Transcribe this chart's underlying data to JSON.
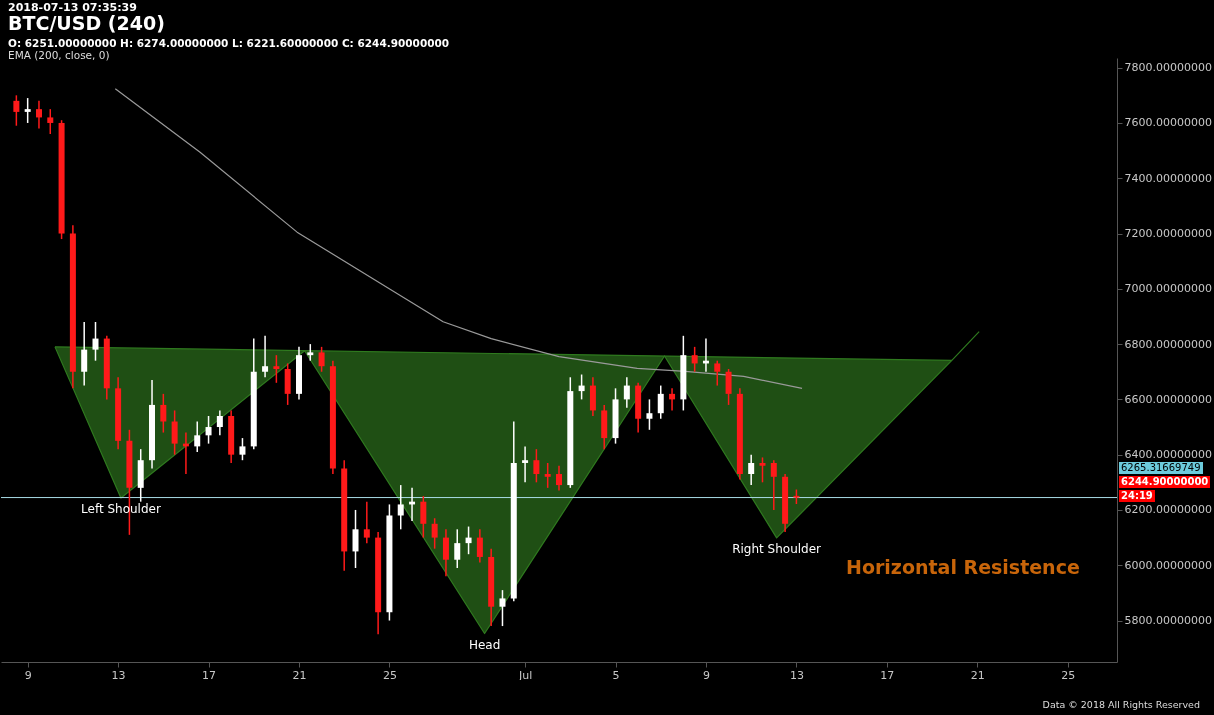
{
  "chart_data": {
    "type": "candlestick",
    "title": "BTC/USD (240)",
    "subtitle": "O: 6251.00000000 H: 6274.00000000 L: 6221.60000000 C: 6244.90000000",
    "annotations": [
      "2018-07-13 07:35:39",
      "6265.31669749",
      "6244.90000000",
      "24:19",
      "Horizontal Resistence",
      "Data © 2018 All Rights Reserved",
      {
        "text": "Left Shoulder",
        "x": "2018-06-13T03:00",
        "y": 6243
      },
      {
        "text": "Head",
        "x": "2018-06-29T05:00",
        "y": 5753
      },
      {
        "text": "Right Shoulder",
        "x": "2018-07-12T03:00",
        "y": 6099
      }
    ],
    "colors": [
      "#ff1a1a",
      "#ffffff",
      "#ff1a1a",
      "#ff1a1a",
      "#ff1a1a",
      "#ff1a1a",
      "#ffffff",
      "#ffffff",
      "#ff1a1a",
      "#ff1a1a",
      "#ff1a1a",
      "#ffffff",
      "#ffffff",
      "#ff1a1a",
      "#ff1a1a",
      "#ff1a1a",
      "#ffffff",
      "#ffffff",
      "#ffffff",
      "#ff1a1a",
      "#ffffff",
      "#ffffff",
      "#ffffff",
      "#ff1a1a",
      "#ff1a1a",
      "#ffffff",
      "#ffffff",
      "#ff1a1a",
      "#ff1a1a",
      "#ff1a1a",
      "#ffffff",
      "#ff1a1a",
      "#ff1a1a",
      "#ffffff",
      "#ffffff",
      "#ffffff",
      "#ff1a1a",
      "#ff1a1a",
      "#ff1a1a",
      "#ffffff",
      "#ffffff",
      "#ff1a1a",
      "#ff1a1a",
      "#ffffff",
      "#ffffff",
      "#ffffff",
      "#ff1a1a",
      "#ff1a1a",
      "#ff1a1a",
      "#ffffff",
      "#ffffff",
      "#ff1a1a",
      "#ff1a1a",
      "#ffffff",
      "#ffffff",
      "#ff1a1a",
      "#ffffff",
      "#ffffff",
      "#ff1a1a",
      "#ffffff",
      "#ff1a1a",
      "#ffffff",
      "#ff1a1a",
      "#ff1a1a",
      "#ff1a1a",
      "#ffffff",
      "#ff1a1a",
      "#ff1a1a",
      "#ff1a1a",
      "#ff1a1a"
    ],
    "x": [
      "2018-06-08T12:00",
      "2018-06-09T00:00",
      "2018-06-09T12:00",
      "2018-06-10T00:00",
      "2018-06-10T12:00",
      "2018-06-11T00:00",
      "2018-06-11T12:00",
      "2018-06-12T00:00",
      "2018-06-12T12:00",
      "2018-06-13T00:00",
      "2018-06-13T12:00",
      "2018-06-14T00:00",
      "2018-06-14T12:00",
      "2018-06-15T00:00",
      "2018-06-15T12:00",
      "2018-06-16T00:00",
      "2018-06-16T12:00",
      "2018-06-17T00:00",
      "2018-06-17T12:00",
      "2018-06-18T00:00",
      "2018-06-18T12:00",
      "2018-06-19T00:00",
      "2018-06-19T12:00",
      "2018-06-20T00:00",
      "2018-06-20T12:00",
      "2018-06-21T00:00",
      "2018-06-21T12:00",
      "2018-06-22T00:00",
      "2018-06-22T12:00",
      "2018-06-23T00:00",
      "2018-06-23T12:00",
      "2018-06-24T00:00",
      "2018-06-24T12:00",
      "2018-06-25T00:00",
      "2018-06-25T12:00",
      "2018-06-26T00:00",
      "2018-06-26T12:00",
      "2018-06-27T00:00",
      "2018-06-27T12:00",
      "2018-06-28T00:00",
      "2018-06-28T12:00",
      "2018-06-29T00:00",
      "2018-06-29T12:00",
      "2018-06-30T00:00",
      "2018-06-30T12:00",
      "2018-07-01T00:00",
      "2018-07-01T12:00",
      "2018-07-02T00:00",
      "2018-07-02T12:00",
      "2018-07-03T00:00",
      "2018-07-03T12:00",
      "2018-07-04T00:00",
      "2018-07-04T12:00",
      "2018-07-05T00:00",
      "2018-07-05T12:00",
      "2018-07-06T00:00",
      "2018-07-06T12:00",
      "2018-07-07T00:00",
      "2018-07-07T12:00",
      "2018-07-08T00:00",
      "2018-07-08T12:00",
      "2018-07-09T00:00",
      "2018-07-09T12:00",
      "2018-07-10T00:00",
      "2018-07-10T12:00",
      "2018-07-11T00:00",
      "2018-07-11T12:00",
      "2018-07-12T00:00",
      "2018-07-12T12:00",
      "2018-07-13T00:00"
    ],
    "ohlc": [
      [
        7680,
        7700,
        7590,
        7640
      ],
      [
        7640,
        7690,
        7600,
        7650
      ],
      [
        7650,
        7680,
        7580,
        7620
      ],
      [
        7620,
        7650,
        7560,
        7600
      ],
      [
        7600,
        7610,
        7180,
        7200
      ],
      [
        7200,
        7230,
        6640,
        6700
      ],
      [
        6700,
        6880,
        6650,
        6780
      ],
      [
        6780,
        6880,
        6740,
        6820
      ],
      [
        6820,
        6830,
        6600,
        6640
      ],
      [
        6640,
        6680,
        6420,
        6450
      ],
      [
        6450,
        6490,
        6110,
        6280
      ],
      [
        6280,
        6420,
        6230,
        6380
      ],
      [
        6380,
        6670,
        6350,
        6580
      ],
      [
        6580,
        6620,
        6480,
        6520
      ],
      [
        6520,
        6560,
        6400,
        6440
      ],
      [
        6440,
        6480,
        6330,
        6430
      ],
      [
        6430,
        6520,
        6410,
        6470
      ],
      [
        6470,
        6540,
        6440,
        6500
      ],
      [
        6500,
        6560,
        6470,
        6540
      ],
      [
        6540,
        6560,
        6370,
        6400
      ],
      [
        6400,
        6460,
        6380,
        6430
      ],
      [
        6430,
        6820,
        6420,
        6700
      ],
      [
        6700,
        6830,
        6680,
        6720
      ],
      [
        6720,
        6760,
        6660,
        6710
      ],
      [
        6710,
        6730,
        6580,
        6620
      ],
      [
        6620,
        6790,
        6600,
        6760
      ],
      [
        6760,
        6800,
        6740,
        6770
      ],
      [
        6770,
        6790,
        6700,
        6720
      ],
      [
        6720,
        6740,
        6330,
        6350
      ],
      [
        6350,
        6380,
        5980,
        6050
      ],
      [
        6050,
        6200,
        5990,
        6130
      ],
      [
        6130,
        6230,
        6080,
        6100
      ],
      [
        6100,
        6120,
        5750,
        5830
      ],
      [
        5830,
        6220,
        5800,
        6180
      ],
      [
        6180,
        6290,
        6130,
        6220
      ],
      [
        6220,
        6280,
        6160,
        6230
      ],
      [
        6230,
        6250,
        6100,
        6150
      ],
      [
        6150,
        6170,
        6060,
        6100
      ],
      [
        6100,
        6130,
        5960,
        6020
      ],
      [
        6020,
        6130,
        5990,
        6080
      ],
      [
        6080,
        6140,
        6040,
        6100
      ],
      [
        6100,
        6130,
        6010,
        6030
      ],
      [
        6030,
        6060,
        5780,
        5850
      ],
      [
        5850,
        5910,
        5780,
        5880
      ],
      [
        5880,
        6520,
        5870,
        6370
      ],
      [
        6370,
        6430,
        6300,
        6380
      ],
      [
        6380,
        6420,
        6300,
        6330
      ],
      [
        6330,
        6370,
        6280,
        6320
      ],
      [
        6330,
        6360,
        6270,
        6290
      ],
      [
        6290,
        6680,
        6280,
        6630
      ],
      [
        6630,
        6690,
        6600,
        6650
      ],
      [
        6650,
        6680,
        6540,
        6560
      ],
      [
        6560,
        6580,
        6420,
        6460
      ],
      [
        6460,
        6640,
        6440,
        6600
      ],
      [
        6600,
        6680,
        6570,
        6650
      ],
      [
        6650,
        6660,
        6480,
        6530
      ],
      [
        6530,
        6600,
        6490,
        6550
      ],
      [
        6550,
        6650,
        6530,
        6620
      ],
      [
        6620,
        6640,
        6560,
        6600
      ],
      [
        6600,
        6830,
        6560,
        6760
      ],
      [
        6760,
        6790,
        6700,
        6730
      ],
      [
        6730,
        6820,
        6700,
        6740
      ],
      [
        6730,
        6740,
        6650,
        6700
      ],
      [
        6700,
        6710,
        6580,
        6620
      ],
      [
        6620,
        6640,
        6310,
        6330
      ],
      [
        6330,
        6400,
        6290,
        6370
      ],
      [
        6370,
        6390,
        6300,
        6360
      ],
      [
        6370,
        6380,
        6200,
        6320
      ],
      [
        6320,
        6330,
        6120,
        6150
      ],
      [
        6251,
        6274,
        6221.6,
        6244.9
      ]
    ],
    "series": [
      {
        "type": "line",
        "color": "#2f7a1f",
        "x": [
          "2018-06-10T05:00",
          "2018-06-13T03:00",
          "2018-06-21T06:00",
          "2018-06-29T05:00",
          "2018-07-07T04:00",
          "2018-07-12T03:00",
          "2018-07-19T21:00",
          "2018-07-21T02:00"
        ],
        "values": [
          6790,
          6243,
          6776,
          5753,
          6757,
          6099,
          6741,
          6845
        ],
        "lower": [
          6790,
          6243,
          6776,
          5753,
          6757,
          6099,
          6741,
          null
        ],
        "upper": [
          6790,
          6786,
          6776,
          6767,
          6757,
          6751,
          6741,
          null
        ]
      },
      {
        "type": "line",
        "color": "#2f7a1f",
        "x": [
          "2018-06-10T05:00",
          "2018-07-19T21:00"
        ],
        "values": [
          6790,
          6741
        ]
      },
      {
        "name": "EMA (200, close, 0)",
        "type": "line",
        "color": "#9a9a9a",
        "x": [
          "2018-06-12T21:00",
          "2018-06-16T15:00",
          "2018-06-20T22:00",
          "2018-06-25T05:00",
          "2018-06-27T09:00",
          "2018-06-29T12:00",
          "2018-07-02T12:00",
          "2018-07-05T23:00",
          "2018-07-08T02:00",
          "2018-07-10T16:00",
          "2018-07-13T06:00"
        ],
        "values": [
          7724,
          7494,
          7205,
          6989,
          6881,
          6820,
          6755,
          6712,
          6701,
          6683,
          6640
        ]
      }
    ],
    "ref_lines": [
      {
        "axis": "y",
        "value": 6244.9,
        "color": "#a8dce6"
      }
    ],
    "legend": "top left",
    "xlim": [
      "2018-06-08T01:00",
      "2018-07-26T23:00"
    ],
    "xticks": [
      {
        "value": "2018-06-09",
        "label": "9"
      },
      {
        "value": "2018-06-13",
        "label": "13"
      },
      {
        "value": "2018-06-17",
        "label": "17"
      },
      {
        "value": "2018-06-21",
        "label": "21"
      },
      {
        "value": "2018-06-25",
        "label": "25"
      },
      {
        "value": "2018-07-01",
        "label": "Jul"
      },
      {
        "value": "2018-07-05",
        "label": "5"
      },
      {
        "value": "2018-07-09",
        "label": "9"
      },
      {
        "value": "2018-07-13",
        "label": "13"
      },
      {
        "value": "2018-07-17",
        "label": "17"
      },
      {
        "value": "2018-07-21",
        "label": "21"
      },
      {
        "value": "2018-07-25",
        "label": "25"
      }
    ],
    "ylim": [
      5650,
      7835
    ],
    "yticks": [
      {
        "value": 5800,
        "label": "5800.00000000"
      },
      {
        "value": 6000,
        "label": "6000.00000000"
      },
      {
        "value": 6200,
        "label": "6200.00000000"
      },
      {
        "value": 6400,
        "label": "6400.00000000"
      },
      {
        "value": 6600,
        "label": "6600.00000000"
      },
      {
        "value": 6800,
        "label": "6800.00000000"
      },
      {
        "value": 7000,
        "label": "7000.00000000"
      },
      {
        "value": 7200,
        "label": "7200.00000000"
      },
      {
        "value": 7400,
        "label": "7400.00000000"
      },
      {
        "value": 7600,
        "label": "7600.00000000"
      },
      {
        "value": 7800,
        "label": "7800.00000000"
      }
    ]
  }
}
